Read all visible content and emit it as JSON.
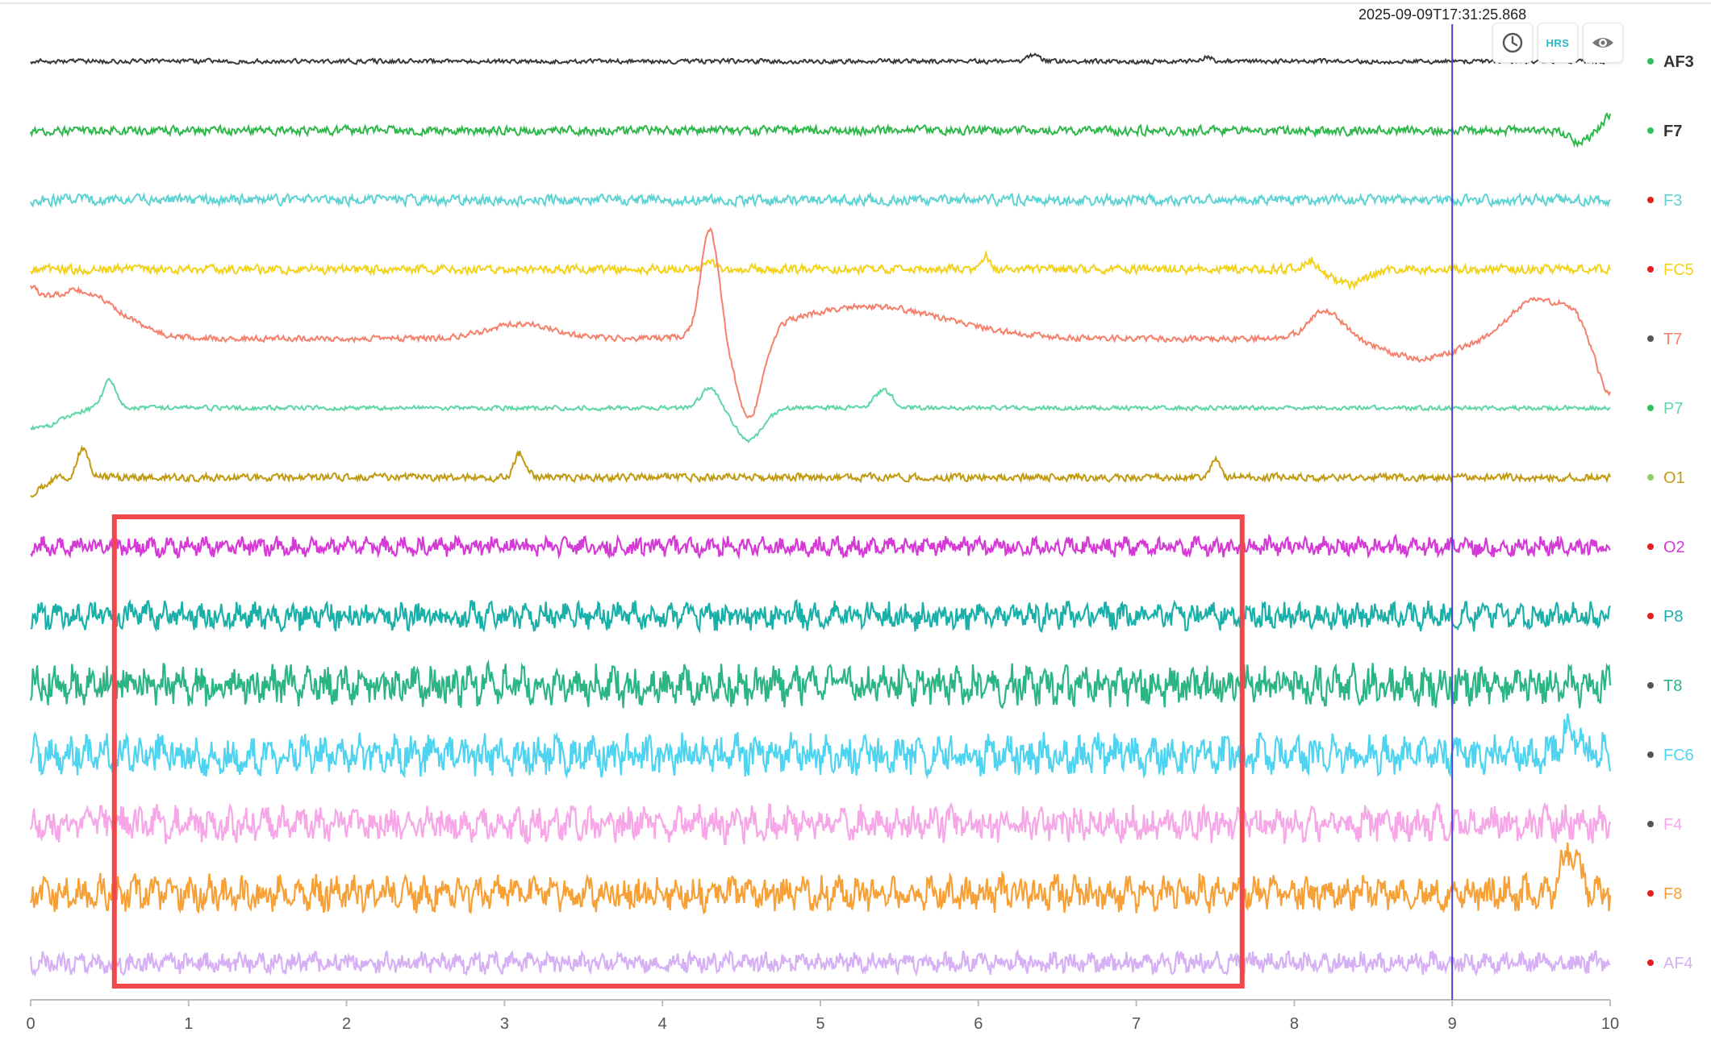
{
  "cursor": {
    "timestamp": "2025-09-09T17:31:25.868",
    "time": 9.0,
    "color": "#4b3fd6"
  },
  "toolbar": {
    "buttons": [
      {
        "name": "history-button",
        "icon": "clock-icon",
        "label": ""
      },
      {
        "name": "hrs-button",
        "icon": "hrs-icon",
        "label": "HRS"
      },
      {
        "name": "visibility-button",
        "icon": "eye-icon",
        "label": ""
      }
    ]
  },
  "selection": {
    "start": 0.53,
    "end": 7.67,
    "color": "#f0474a",
    "first_channel": "O2",
    "last_channel": "AF4"
  },
  "chart_data": {
    "type": "line",
    "x_range": [
      0,
      10
    ],
    "x_ticks": [
      "0",
      "1",
      "2",
      "3",
      "4",
      "5",
      "6",
      "7",
      "8",
      "9",
      "10"
    ],
    "grid": false,
    "legend": "right",
    "series": [
      {
        "name": "AF3",
        "color": "#3a3a3a",
        "dot": "#2ec05a",
        "bold": true,
        "amp": 3,
        "style": "flat-bump"
      },
      {
        "name": "F7",
        "color": "#2eb84a",
        "dot": "#2ec05a",
        "bold": true,
        "amp": 6,
        "style": "flat-end-dip"
      },
      {
        "name": "F3",
        "color": "#5fd3d3",
        "dot": "#e02020",
        "bold": false,
        "amp": 7,
        "style": "flat"
      },
      {
        "name": "FC5",
        "color": "#f2d21a",
        "dot": "#e02020",
        "bold": false,
        "amp": 6,
        "style": "flat-spikes"
      },
      {
        "name": "T7",
        "color": "#f5806b",
        "dot": "#555555",
        "bold": false,
        "amp": 4,
        "style": "wander"
      },
      {
        "name": "P7",
        "color": "#5ed6a5",
        "dot": "#2ec05a",
        "bold": false,
        "amp": 3,
        "style": "flat-spikes-down"
      },
      {
        "name": "O1",
        "color": "#c09a10",
        "dot": "#8fd16a",
        "bold": false,
        "amp": 5,
        "style": "flat-spikes"
      },
      {
        "name": "O2",
        "color": "#d63ad6",
        "dot": "#e02020",
        "bold": false,
        "amp": 9,
        "style": "noise"
      },
      {
        "name": "P8",
        "color": "#18b0a8",
        "dot": "#e02020",
        "bold": false,
        "amp": 13,
        "style": "noise"
      },
      {
        "name": "T8",
        "color": "#2bb583",
        "dot": "#555555",
        "bold": false,
        "amp": 19,
        "style": "noise"
      },
      {
        "name": "FC6",
        "color": "#4ed4f0",
        "dot": "#555555",
        "bold": false,
        "amp": 19,
        "style": "noise-end"
      },
      {
        "name": "F4",
        "color": "#f7a6e8",
        "dot": "#555555",
        "bold": false,
        "amp": 17,
        "style": "noise"
      },
      {
        "name": "F8",
        "color": "#f7a035",
        "dot": "#e02020",
        "bold": false,
        "amp": 17,
        "style": "noise-end"
      },
      {
        "name": "AF4",
        "color": "#d6b0f5",
        "dot": "#e02020",
        "bold": false,
        "amp": 10,
        "style": "noise"
      }
    ]
  }
}
